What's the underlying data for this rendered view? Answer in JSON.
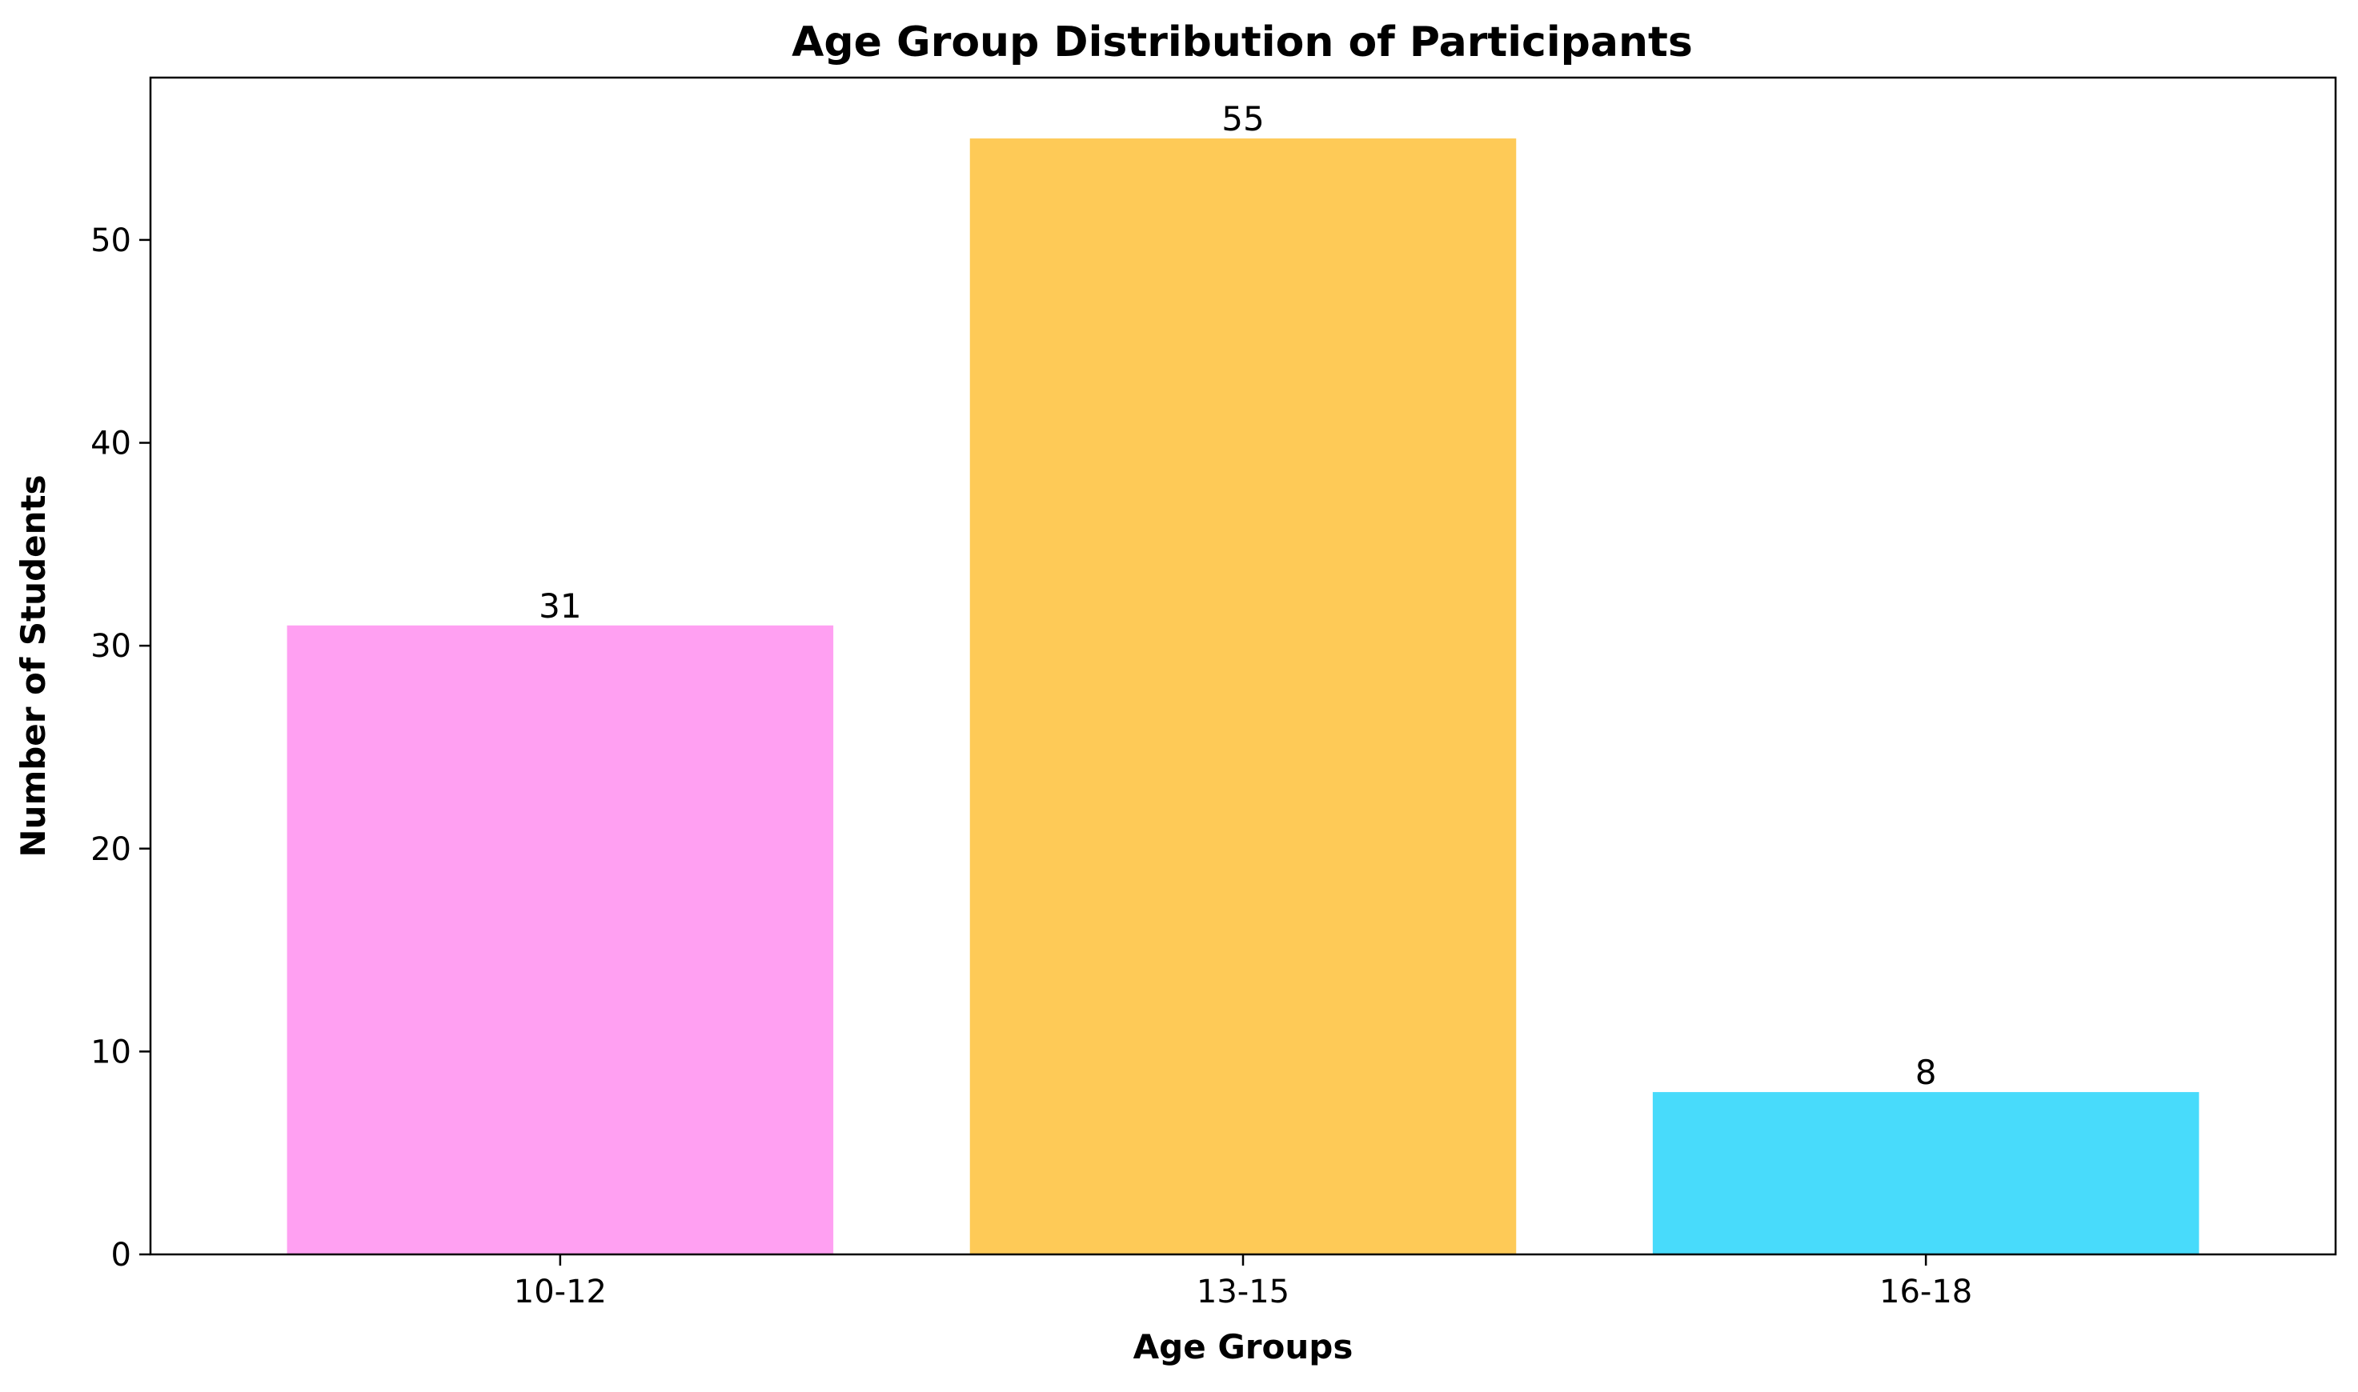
{
  "chart_data": {
    "type": "bar",
    "title": "Age Group Distribution of Participants",
    "xlabel": "Age Groups",
    "ylabel": "Number of Students",
    "categories": [
      "10-12",
      "13-15",
      "16-18"
    ],
    "values": [
      31,
      55,
      8
    ],
    "data_labels": [
      "31",
      "55",
      "8"
    ],
    "colors": [
      "#FFA0F2",
      "#FECA57",
      "#48DBFB"
    ],
    "ylim": [
      0,
      58
    ],
    "yticks": [
      0,
      10,
      20,
      30,
      40,
      50
    ],
    "ytick_labels": [
      "0",
      "10",
      "20",
      "30",
      "40",
      "50"
    ],
    "grid": false,
    "legend": "none"
  }
}
